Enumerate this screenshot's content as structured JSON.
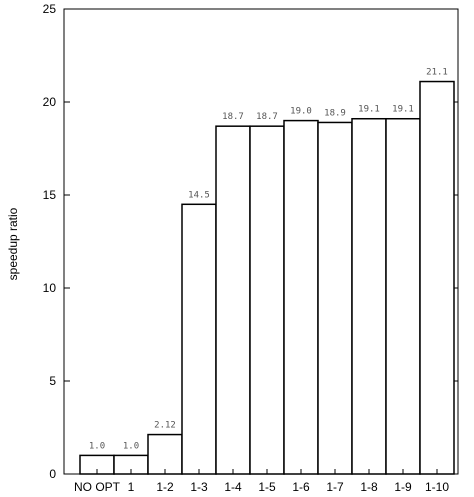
{
  "chart_data": {
    "type": "bar",
    "title": "",
    "xlabel": "",
    "ylabel": "speedup ratio",
    "ylim": [
      0,
      25
    ],
    "yticks": [
      0,
      5,
      10,
      15,
      20,
      25
    ],
    "grid": false,
    "categories": [
      "NO OPT",
      "1",
      "1-2",
      "1-3",
      "1-4",
      "1-5",
      "1-6",
      "1-7",
      "1-8",
      "1-9",
      "1-10"
    ],
    "values": [
      1.0,
      1.0,
      2.12,
      14.5,
      18.7,
      18.7,
      19.0,
      18.9,
      19.1,
      19.1,
      21.1
    ],
    "data_labels": [
      "1.0",
      "1.0",
      "2.12",
      "14.5",
      "18.7",
      "18.7",
      "19.0",
      "18.9",
      "19.1",
      "19.1",
      "21.1"
    ],
    "colors": {
      "bar_fill": "#ffffff",
      "bar_stroke": "#000000",
      "data_label": "#555555"
    }
  }
}
